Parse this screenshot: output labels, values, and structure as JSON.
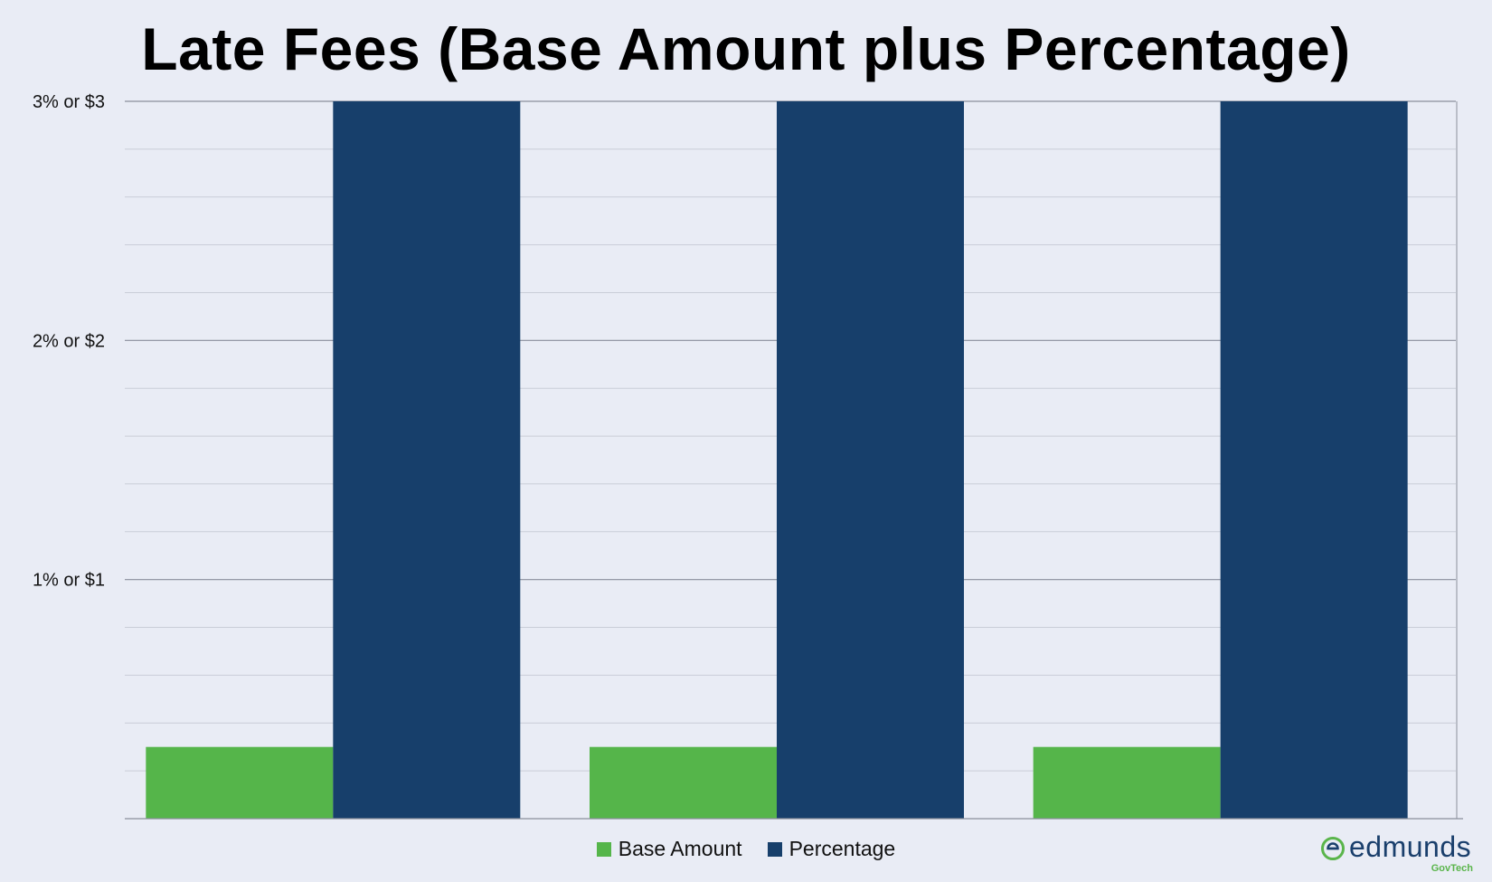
{
  "chart_data": {
    "type": "bar",
    "title": "Late Fees (Base Amount plus Percentage)",
    "xlabel": "",
    "ylabel": "",
    "categories": [
      "",
      "",
      ""
    ],
    "series": [
      {
        "name": "Base Amount",
        "color": "#55b54a",
        "values": [
          0.3,
          0.3,
          0.3
        ]
      },
      {
        "name": "Percentage",
        "color": "#173f6b",
        "values": [
          3,
          3,
          3
        ]
      }
    ],
    "ylim": [
      0,
      3
    ],
    "y_ticks": [
      {
        "value": 1,
        "label": "1% or $1"
      },
      {
        "value": 2,
        "label": "2% or $2"
      },
      {
        "value": 3,
        "label": "3% or $3"
      }
    ],
    "minor_grid_step": 0.2,
    "grid": true,
    "legend": "bottom-center"
  },
  "brand": {
    "name": "edmunds",
    "sub": "GovTech",
    "logo_icon": "edmunds-e-icon",
    "accent": "#5ab54b",
    "text_color": "#1a3f6c"
  }
}
